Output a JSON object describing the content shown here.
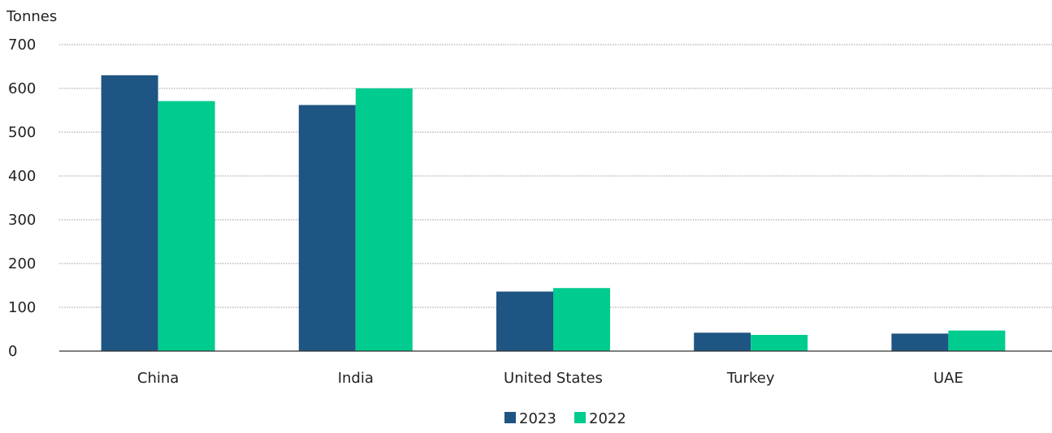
{
  "chart_data": {
    "type": "bar",
    "title": "",
    "xlabel": "",
    "ylabel": "Tonnes",
    "ylim": [
      0,
      700
    ],
    "yticks": [
      0,
      100,
      200,
      300,
      400,
      500,
      600,
      700
    ],
    "categories": [
      "China",
      "India",
      "United States",
      "Turkey",
      "UAE"
    ],
    "series": [
      {
        "name": "2023",
        "color": "#1f5582",
        "values": [
          630,
          562,
          136,
          42,
          40
        ]
      },
      {
        "name": "2022",
        "color": "#00cc8f",
        "values": [
          571,
          600,
          144,
          37,
          47
        ]
      }
    ],
    "grid": true,
    "legend_position": "bottom"
  }
}
